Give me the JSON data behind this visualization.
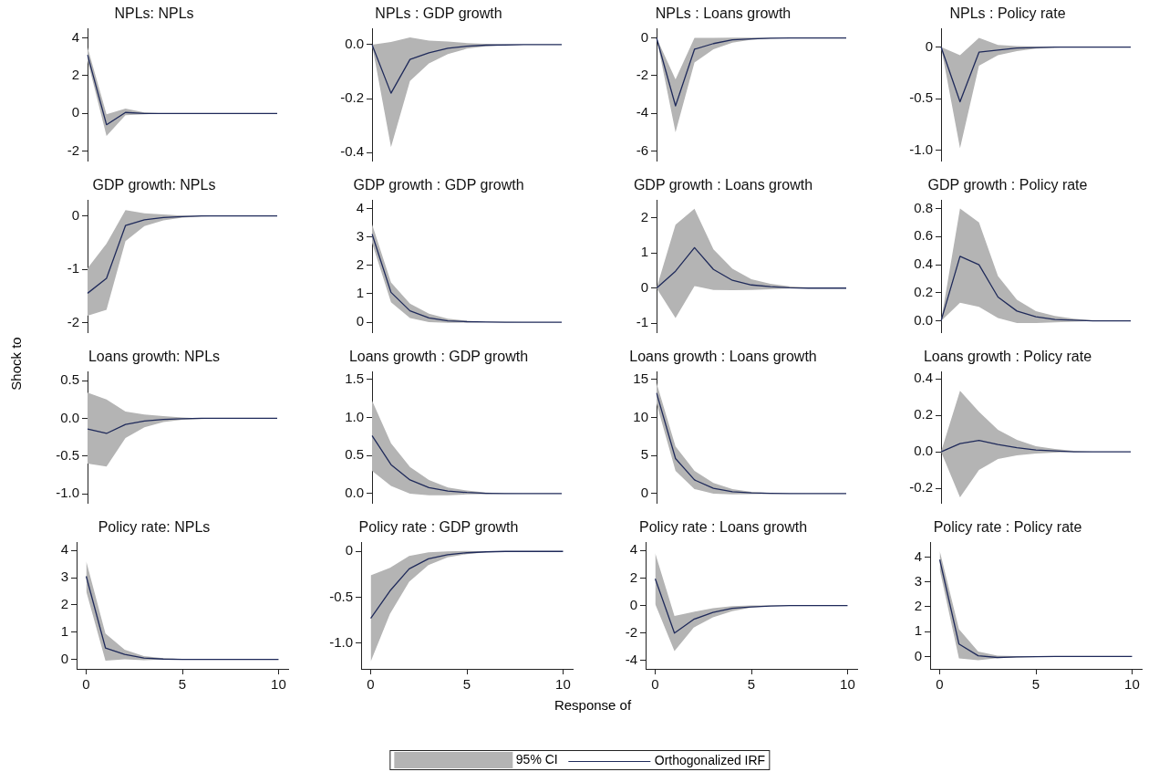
{
  "chart_data": [
    {
      "type": "line",
      "title": "NPLs: NPLs",
      "x": [
        0,
        1,
        2,
        3,
        4,
        5,
        6,
        7,
        8,
        9,
        10
      ],
      "ylim": [
        -2.5,
        4.5
      ],
      "yticks": [
        -2,
        0,
        2,
        4
      ],
      "tick_labels": "y",
      "grid": false,
      "series": [
        {
          "color": "#1f2a5a",
          "values": [
            3.1,
            -0.6,
            0.05,
            0,
            0,
            0,
            0,
            0,
            0,
            0,
            0
          ],
          "lower": [
            2.8,
            -1.2,
            -0.1,
            -0.05,
            0,
            0,
            0,
            0,
            0,
            0,
            0
          ],
          "upper": [
            3.5,
            -0.05,
            0.25,
            0.05,
            0,
            0,
            0,
            0,
            0,
            0,
            0
          ]
        }
      ]
    },
    {
      "type": "line",
      "title": "NPLs : GDP growth",
      "x": [
        0,
        1,
        2,
        3,
        4,
        5,
        6,
        7,
        8,
        9,
        10
      ],
      "ylim": [
        -0.43,
        0.06
      ],
      "yticks": [
        {
          "value": -0.4,
          "label": "-0.4"
        },
        {
          "value": -0.2,
          "label": "-0.2"
        },
        {
          "value": 0,
          "label": "0.0"
        }
      ],
      "tick_labels": "y",
      "grid": false,
      "series": [
        {
          "color": "#1f2a5a",
          "values": [
            0,
            -0.18,
            -0.055,
            -0.03,
            -0.013,
            -0.006,
            -0.002,
            -0.001,
            0,
            0,
            0
          ],
          "lower": [
            0,
            -0.38,
            -0.135,
            -0.07,
            -0.035,
            -0.015,
            -0.006,
            -0.002,
            0,
            0,
            0
          ],
          "upper": [
            0,
            0.01,
            0.027,
            0.015,
            0.012,
            0.006,
            0.003,
            0.001,
            0,
            0,
            0
          ]
        }
      ]
    },
    {
      "type": "line",
      "title": "NPLs : Loans growth",
      "x": [
        0,
        1,
        2,
        3,
        4,
        5,
        6,
        7,
        8,
        9,
        10
      ],
      "ylim": [
        -6.5,
        0.5
      ],
      "yticks": [
        -6,
        -4,
        -2,
        0
      ],
      "tick_labels": "y",
      "grid": false,
      "series": [
        {
          "color": "#1f2a5a",
          "values": [
            0,
            -3.6,
            -0.6,
            -0.3,
            -0.1,
            -0.05,
            -0.02,
            0,
            0,
            0,
            0
          ],
          "lower": [
            0,
            -5,
            -1.3,
            -0.6,
            -0.25,
            -0.1,
            -0.04,
            -0.01,
            0,
            0,
            0
          ],
          "upper": [
            0,
            -2.2,
            0,
            0,
            0.02,
            0.01,
            0,
            0,
            0,
            0,
            0
          ]
        }
      ]
    },
    {
      "type": "line",
      "title": "NPLs : Policy rate",
      "x": [
        0,
        1,
        2,
        3,
        4,
        5,
        6,
        7,
        8,
        9,
        10
      ],
      "ylim": [
        -1.1,
        0.18
      ],
      "yticks": [
        {
          "value": -1,
          "label": "-1.0"
        },
        {
          "value": -0.5,
          "label": "-0.5"
        },
        0
      ],
      "tick_labels": "y",
      "grid": false,
      "series": [
        {
          "color": "#1f2a5a",
          "values": [
            0,
            -0.53,
            -0.05,
            -0.03,
            -0.01,
            -0.005,
            0,
            0,
            0,
            0,
            0
          ],
          "lower": [
            0,
            -0.98,
            -0.18,
            -0.08,
            -0.04,
            -0.015,
            -0.005,
            0,
            0,
            0,
            0
          ],
          "upper": [
            0,
            -0.08,
            0.09,
            0.02,
            0.01,
            0.005,
            0,
            0,
            0,
            0,
            0
          ]
        }
      ]
    },
    {
      "type": "line",
      "title": "GDP growth: NPLs",
      "x": [
        0,
        1,
        2,
        3,
        4,
        5,
        6,
        7,
        8,
        9,
        10
      ],
      "ylim": [
        -2.18,
        0.3
      ],
      "yticks": [
        -2,
        -1,
        0
      ],
      "tick_labels": "y",
      "grid": false,
      "series": [
        {
          "color": "#1f2a5a",
          "values": [
            -1.45,
            -1.17,
            -0.18,
            -0.07,
            -0.03,
            -0.01,
            0,
            0,
            0,
            0,
            0
          ],
          "lower": [
            -1.87,
            -1.76,
            -0.47,
            -0.19,
            -0.08,
            -0.03,
            -0.01,
            0,
            0,
            0,
            0
          ],
          "upper": [
            -0.98,
            -0.52,
            0.11,
            0.05,
            0.03,
            0.01,
            0,
            0,
            0,
            0,
            0
          ]
        }
      ]
    },
    {
      "type": "line",
      "title": "GDP growth : GDP growth",
      "x": [
        0,
        1,
        2,
        3,
        4,
        5,
        6,
        7,
        8,
        9,
        10
      ],
      "ylim": [
        -0.35,
        4.3
      ],
      "yticks": [
        0,
        1,
        2,
        3,
        4
      ],
      "tick_labels": "y",
      "grid": false,
      "series": [
        {
          "color": "#1f2a5a",
          "values": [
            3.1,
            1.05,
            0.4,
            0.15,
            0.05,
            0.02,
            0.01,
            0,
            0,
            0,
            0
          ],
          "lower": [
            2.8,
            0.7,
            0.15,
            0,
            -0.02,
            -0.01,
            0,
            0,
            0,
            0,
            0
          ],
          "upper": [
            3.45,
            1.4,
            0.65,
            0.3,
            0.12,
            0.05,
            0.02,
            0.01,
            0,
            0,
            0
          ]
        }
      ]
    },
    {
      "type": "line",
      "title": "GDP growth : Loans growth",
      "x": [
        0,
        1,
        2,
        3,
        4,
        5,
        6,
        7,
        8,
        9,
        10
      ],
      "ylim": [
        -1.25,
        2.5
      ],
      "yticks": [
        -1,
        0,
        1,
        2
      ],
      "tick_labels": "y",
      "grid": false,
      "series": [
        {
          "color": "#1f2a5a",
          "values": [
            0,
            0.48,
            1.15,
            0.53,
            0.22,
            0.09,
            0.04,
            0.01,
            0,
            0,
            0
          ],
          "lower": [
            0,
            -0.85,
            0.06,
            -0.05,
            -0.06,
            -0.05,
            -0.03,
            -0.01,
            0,
            0,
            0
          ],
          "upper": [
            0,
            1.8,
            2.25,
            1.1,
            0.55,
            0.25,
            0.12,
            0.05,
            0.02,
            0.01,
            0
          ]
        }
      ]
    },
    {
      "type": "line",
      "title": "GDP growth : Policy rate",
      "x": [
        0,
        1,
        2,
        3,
        4,
        5,
        6,
        7,
        8,
        9,
        10
      ],
      "ylim": [
        -0.08,
        0.86
      ],
      "yticks": [
        {
          "value": 0,
          "label": "0.0"
        },
        {
          "value": 0.2,
          "label": "0.2"
        },
        {
          "value": 0.4,
          "label": "0.4"
        },
        {
          "value": 0.6,
          "label": "0.6"
        },
        {
          "value": 0.8,
          "label": "0.8"
        }
      ],
      "tick_labels": "y",
      "grid": false,
      "series": [
        {
          "color": "#1f2a5a",
          "values": [
            0,
            0.46,
            0.4,
            0.17,
            0.07,
            0.03,
            0.01,
            0.005,
            0,
            0,
            0
          ],
          "lower": [
            0,
            0.13,
            0.1,
            0.02,
            -0.015,
            -0.015,
            -0.01,
            -0.005,
            0,
            0,
            0
          ],
          "upper": [
            0,
            0.8,
            0.7,
            0.32,
            0.15,
            0.07,
            0.035,
            0.015,
            0.005,
            0,
            0
          ]
        }
      ]
    },
    {
      "type": "line",
      "title": "Loans growth: NPLs",
      "ylabel": "Shock to",
      "x": [
        0,
        1,
        2,
        3,
        4,
        5,
        6,
        7,
        8,
        9,
        10
      ],
      "ylim": [
        -1.12,
        0.62
      ],
      "yticks": [
        {
          "value": -1,
          "label": "-1.0"
        },
        {
          "value": -0.5,
          "label": "-0.5"
        },
        {
          "value": 0,
          "label": "0.0"
        },
        {
          "value": 0.5,
          "label": "0.5"
        }
      ],
      "tick_labels": "y",
      "grid": false,
      "series": [
        {
          "color": "#1f2a5a",
          "values": [
            -0.14,
            -0.2,
            -0.08,
            -0.035,
            -0.015,
            -0.005,
            0,
            0,
            0,
            0,
            0
          ],
          "lower": [
            -0.6,
            -0.64,
            -0.26,
            -0.12,
            -0.05,
            -0.02,
            -0.01,
            0,
            0,
            0,
            0
          ],
          "upper": [
            0.34,
            0.25,
            0.09,
            0.05,
            0.03,
            0.01,
            0,
            0,
            0,
            0,
            0
          ]
        }
      ]
    },
    {
      "type": "line",
      "title": "Loans growth : GDP growth",
      "x": [
        0,
        1,
        2,
        3,
        4,
        5,
        6,
        7,
        8,
        9,
        10
      ],
      "ylim": [
        -0.12,
        1.6
      ],
      "yticks": [
        {
          "value": 0,
          "label": "0.0"
        },
        {
          "value": 0.5,
          "label": "0.5"
        },
        {
          "value": 1,
          "label": "1.0"
        },
        {
          "value": 1.5,
          "label": "1.5"
        }
      ],
      "tick_labels": "y",
      "grid": false,
      "series": [
        {
          "color": "#1f2a5a",
          "values": [
            0.76,
            0.38,
            0.18,
            0.08,
            0.035,
            0.015,
            0.005,
            0,
            0,
            0,
            0
          ],
          "lower": [
            0.3,
            0.1,
            0,
            -0.02,
            -0.02,
            -0.01,
            -0.005,
            0,
            0,
            0,
            0
          ],
          "upper": [
            1.22,
            0.66,
            0.35,
            0.18,
            0.08,
            0.04,
            0.015,
            0.005,
            0,
            0,
            0
          ]
        }
      ]
    },
    {
      "type": "line",
      "title": "Loans growth : Loans growth",
      "x": [
        0,
        1,
        2,
        3,
        4,
        5,
        6,
        7,
        8,
        9,
        10
      ],
      "ylim": [
        -1.2,
        16
      ],
      "yticks": [
        0,
        5,
        10,
        15
      ],
      "tick_labels": "y",
      "grid": false,
      "series": [
        {
          "color": "#1f2a5a",
          "values": [
            13.2,
            4.6,
            1.8,
            0.7,
            0.25,
            0.1,
            0.03,
            0.01,
            0,
            0,
            0
          ],
          "lower": [
            11.8,
            3,
            0.6,
            0,
            -0.1,
            -0.05,
            -0.02,
            0,
            0,
            0,
            0
          ],
          "upper": [
            14.5,
            6.2,
            3,
            1.4,
            0.6,
            0.25,
            0.1,
            0.03,
            0.01,
            0,
            0
          ]
        }
      ]
    },
    {
      "type": "line",
      "title": "Loans growth : Policy rate",
      "x": [
        0,
        1,
        2,
        3,
        4,
        5,
        6,
        7,
        8,
        9,
        10
      ],
      "ylim": [
        -0.28,
        0.44
      ],
      "yticks": [
        {
          "value": -0.2,
          "label": "-0.2"
        },
        {
          "value": 0,
          "label": "0.0"
        },
        {
          "value": 0.2,
          "label": "0.2"
        },
        {
          "value": 0.4,
          "label": "0.4"
        }
      ],
      "tick_labels": "y",
      "grid": false,
      "series": [
        {
          "color": "#1f2a5a",
          "values": [
            0,
            0.045,
            0.062,
            0.04,
            0.022,
            0.01,
            0.005,
            0,
            0,
            0,
            0
          ],
          "lower": [
            0,
            -0.25,
            -0.1,
            -0.04,
            -0.02,
            -0.01,
            -0.005,
            0,
            0,
            0,
            0
          ],
          "upper": [
            0,
            0.335,
            0.22,
            0.12,
            0.065,
            0.03,
            0.015,
            0.005,
            0,
            0,
            0
          ]
        }
      ]
    },
    {
      "type": "line",
      "title": "Policy rate: NPLs",
      "x": [
        0,
        1,
        2,
        3,
        4,
        5,
        6,
        7,
        8,
        9,
        10
      ],
      "xlim": [
        -0.5,
        10.5
      ],
      "xticks": [
        0,
        5,
        10
      ],
      "ylim": [
        -0.35,
        4.3
      ],
      "yticks": [
        0,
        1,
        2,
        3,
        4
      ],
      "grid": false,
      "series": [
        {
          "color": "#1f2a5a",
          "values": [
            3.05,
            0.42,
            0.18,
            0.05,
            0.01,
            0,
            0,
            0,
            0,
            0,
            0
          ],
          "lower": [
            2.5,
            -0.05,
            0,
            -0.03,
            -0.01,
            0,
            0,
            0,
            0,
            0,
            0
          ],
          "upper": [
            3.6,
            0.95,
            0.35,
            0.12,
            0.04,
            0.01,
            0,
            0,
            0,
            0,
            0
          ]
        }
      ]
    },
    {
      "type": "line",
      "title": "Policy rate : GDP growth",
      "xlabel": "Response of",
      "x": [
        0,
        1,
        2,
        3,
        4,
        5,
        6,
        7,
        8,
        9,
        10
      ],
      "xlim": [
        -0.5,
        10.5
      ],
      "xticks": [
        0,
        5,
        10
      ],
      "ylim": [
        -1.28,
        0.1
      ],
      "yticks": [
        {
          "value": -1,
          "label": "-1.0"
        },
        {
          "value": -0.5,
          "label": "-0.5"
        },
        0
      ],
      "grid": false,
      "series": [
        {
          "color": "#1f2a5a",
          "values": [
            -0.73,
            -0.43,
            -0.19,
            -0.08,
            -0.035,
            -0.015,
            -0.005,
            0,
            0,
            0,
            0
          ],
          "lower": [
            -1.2,
            -0.68,
            -0.33,
            -0.15,
            -0.065,
            -0.03,
            -0.01,
            -0.005,
            0,
            0,
            0
          ],
          "upper": [
            -0.26,
            -0.18,
            -0.05,
            -0.01,
            0,
            0.005,
            0,
            0,
            0,
            0,
            0
          ]
        }
      ]
    },
    {
      "type": "line",
      "title": "Policy rate : Loans growth",
      "x": [
        0,
        1,
        2,
        3,
        4,
        5,
        6,
        7,
        8,
        9,
        10
      ],
      "xlim": [
        -0.5,
        10.5
      ],
      "xticks": [
        0,
        5,
        10
      ],
      "ylim": [
        -4.6,
        4.6
      ],
      "yticks": [
        -4,
        -2,
        0,
        2,
        4
      ],
      "grid": false,
      "series": [
        {
          "color": "#1f2a5a",
          "values": [
            1.95,
            -2,
            -1,
            -0.5,
            -0.2,
            -0.1,
            -0.03,
            0,
            0,
            0,
            0
          ],
          "lower": [
            0.1,
            -3.3,
            -1.6,
            -0.85,
            -0.4,
            -0.15,
            -0.05,
            -0.02,
            0,
            0,
            0
          ],
          "upper": [
            3.8,
            -0.75,
            -0.45,
            -0.2,
            -0.05,
            0,
            0,
            0,
            0,
            0,
            0
          ]
        }
      ]
    },
    {
      "type": "line",
      "title": "Policy rate : Policy rate",
      "x": [
        0,
        1,
        2,
        3,
        4,
        5,
        6,
        7,
        8,
        9,
        10
      ],
      "xlim": [
        -0.5,
        10.5
      ],
      "xticks": [
        0,
        5,
        10
      ],
      "ylim": [
        -0.5,
        4.6
      ],
      "yticks": [
        0,
        1,
        2,
        3,
        4
      ],
      "grid": false,
      "legend": "bottom",
      "annotations": [
        "95% CI"
      ],
      "series": [
        {
          "name": "Orthogonalized IRF",
          "color": "#1f2a5a",
          "values": [
            3.9,
            0.5,
            0.03,
            -0.04,
            -0.02,
            -0.01,
            0,
            0,
            0,
            0,
            0
          ],
          "lower": [
            3.5,
            -0.08,
            -0.15,
            -0.07,
            -0.04,
            -0.02,
            0,
            0,
            0,
            0,
            0
          ],
          "upper": [
            4.25,
            1.1,
            0.2,
            0.03,
            0.01,
            0,
            0,
            0,
            0,
            0,
            0
          ]
        }
      ]
    }
  ]
}
